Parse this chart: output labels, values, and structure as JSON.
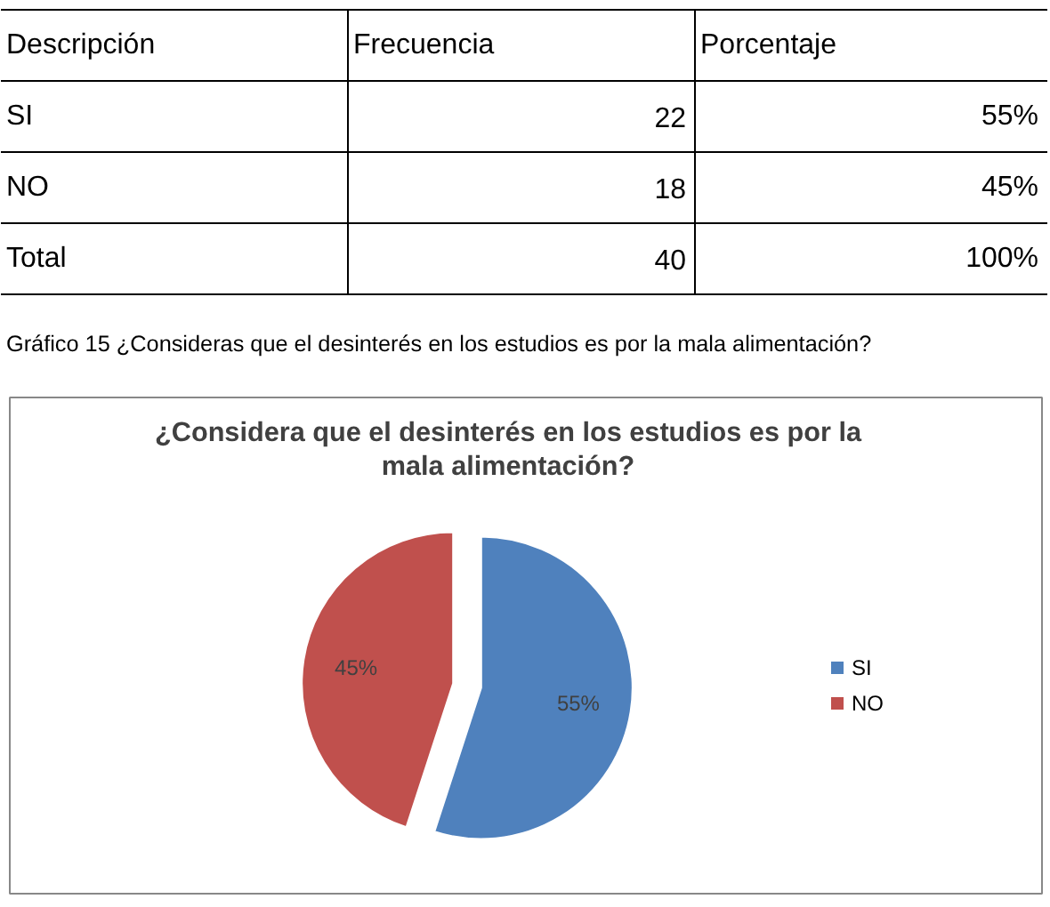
{
  "chart_data": [
    {
      "type": "other",
      "annotations": [
        "Descripción",
        "Frecuencia",
        "Porcentaje",
        "SI",
        "22",
        "55%",
        "NO",
        "18",
        "45%",
        "Total",
        "40",
        "100%"
      ]
    },
    {
      "type": "pie",
      "title": "¿Considera que el desinterés en los estudios es por la mala alimentación?",
      "annotations": [
        "Gráfico 15 ¿Consideras que el desinterés en los estudios es por la mala alimentación?"
      ],
      "categories": [
        "SI",
        "NO"
      ],
      "values": [
        55,
        45
      ],
      "colors": [
        "#4f81bd",
        "#c0504d"
      ],
      "value_labels": [
        "55%",
        "45%"
      ],
      "legend": "right"
    }
  ]
}
